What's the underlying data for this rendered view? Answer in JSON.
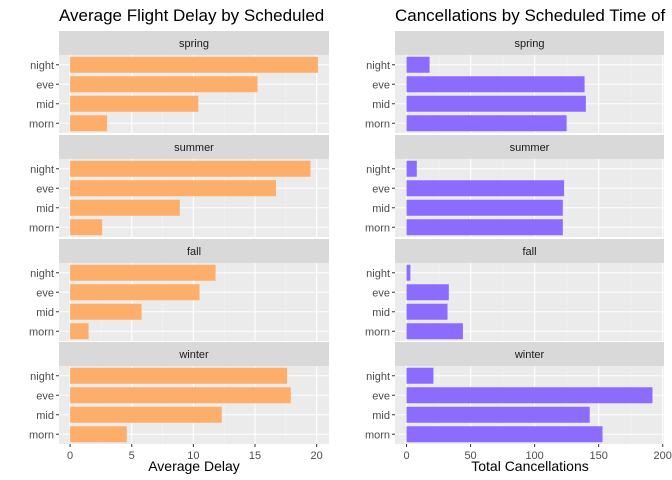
{
  "colors": {
    "panel_bg": "#EBEBEB",
    "strip_bg": "#D9D9D9",
    "grid_major": "#FFFFFF",
    "grid_minor": "#F4F4F4",
    "tick_text": "#4D4D4D",
    "tick_mark": "#333333"
  },
  "chart_data": [
    {
      "type": "bar",
      "orientation": "horizontal",
      "title": "Average Flight Delay by Scheduled",
      "xlabel": "Average Delay",
      "ylabel": "",
      "xlim": [
        -0.9,
        21
      ],
      "x_ticks": [
        0,
        5,
        10,
        15,
        20
      ],
      "bar_color": "#FDAE6B",
      "categories": [
        "night",
        "eve",
        "mid",
        "morn"
      ],
      "facets": [
        {
          "name": "spring",
          "values": [
            20.1,
            15.2,
            10.4,
            3.0
          ]
        },
        {
          "name": "summer",
          "values": [
            19.5,
            16.7,
            8.9,
            2.6
          ]
        },
        {
          "name": "fall",
          "values": [
            11.8,
            10.5,
            5.8,
            1.5
          ]
        },
        {
          "name": "winter",
          "values": [
            17.6,
            17.9,
            12.3,
            4.6
          ]
        }
      ]
    },
    {
      "type": "bar",
      "orientation": "horizontal",
      "title": "Cancellations by Scheduled Time of",
      "xlabel": "Total Cancellations",
      "ylabel": "",
      "xlim": [
        -9,
        201
      ],
      "x_ticks": [
        0,
        50,
        100,
        150,
        200
      ],
      "bar_color": "#8C6BFF",
      "categories": [
        "night",
        "eve",
        "mid",
        "morn"
      ],
      "facets": [
        {
          "name": "spring",
          "values": [
            18,
            139,
            140,
            125
          ]
        },
        {
          "name": "summer",
          "values": [
            8,
            123,
            122,
            122
          ]
        },
        {
          "name": "fall",
          "values": [
            3,
            33,
            32,
            44
          ]
        },
        {
          "name": "winter",
          "values": [
            21,
            192,
            143,
            153
          ]
        }
      ]
    }
  ]
}
